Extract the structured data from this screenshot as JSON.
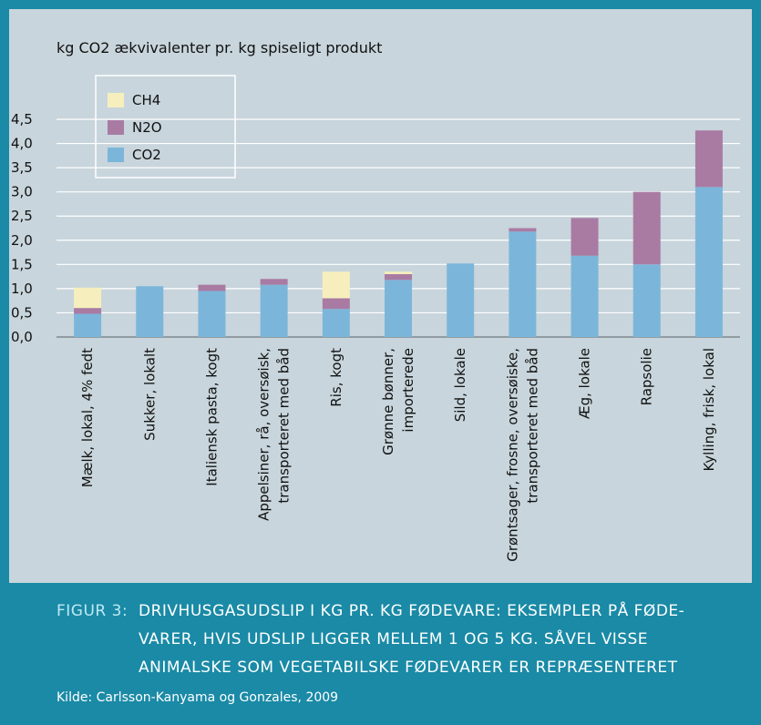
{
  "chart_data": {
    "type": "stacked_bar",
    "y_label": "kg CO2 ækvivalenter pr. kg spiseligt produkt",
    "categories": [
      "Mælk, lokal, 4% fedt",
      "Sukker, lokalt",
      "Italiensk pasta, kogt",
      "Appelsiner, rå, oversøisk,\ntransporteret med båd",
      "Ris, kogt",
      "Grønne bønner,\nimporterede",
      "Sild, lokale",
      "Grøntsager, frosne, oversøiske,\ntransporteret med båd",
      "Æg, lokale",
      "Rapsolie",
      "Kylling, frisk, lokal"
    ],
    "series": [
      {
        "name": "CO2",
        "color": "#7bb6da",
        "values": [
          0.48,
          1.05,
          0.95,
          1.08,
          0.58,
          1.18,
          1.52,
          2.18,
          1.68,
          1.5,
          3.1
        ]
      },
      {
        "name": "N2O",
        "color": "#a97ba3",
        "values": [
          0.12,
          0,
          0.13,
          0.12,
          0.22,
          0.12,
          0,
          0.07,
          0.78,
          1.5,
          1.17
        ]
      },
      {
        "name": "CH4",
        "color": "#f6efbd",
        "values": [
          0.42,
          0,
          0,
          0,
          0.55,
          0.05,
          0,
          0,
          0,
          0,
          0
        ]
      }
    ],
    "ylim": [
      0,
      4.5
    ],
    "yticks": [
      {
        "value": 0,
        "label": "0,0"
      },
      {
        "value": 0.5,
        "label": "0,5"
      },
      {
        "value": 1,
        "label": "1,0"
      },
      {
        "value": 1.5,
        "label": "1,5"
      },
      {
        "value": 2,
        "label": "2,0"
      },
      {
        "value": 2.5,
        "label": "2,5"
      },
      {
        "value": 3,
        "label": "3,0"
      },
      {
        "value": 3.5,
        "label": "3,5"
      },
      {
        "value": 4,
        "label": "4,0"
      },
      {
        "value": 4.5,
        "label": "4,5"
      }
    ],
    "grid": true,
    "legend": "top-left"
  },
  "caption": {
    "label": "FIGUR 3:",
    "lines": [
      "DRIVHUSGASUDSLIP I KG PR. KG FØDEVARE: EKSEMPLER PÅ FØDE-",
      "VARER, HVIS UDSLIP LIGGER MELLEM 1 OG 5 KG. SÅVEL VISSE",
      "ANIMALSKE SOM VEGETABILSKE FØDEVARER ER REPRÆSENTERET"
    ],
    "source": "Kilde: Carlsson-Kanyama og Gonzales, 2009"
  }
}
